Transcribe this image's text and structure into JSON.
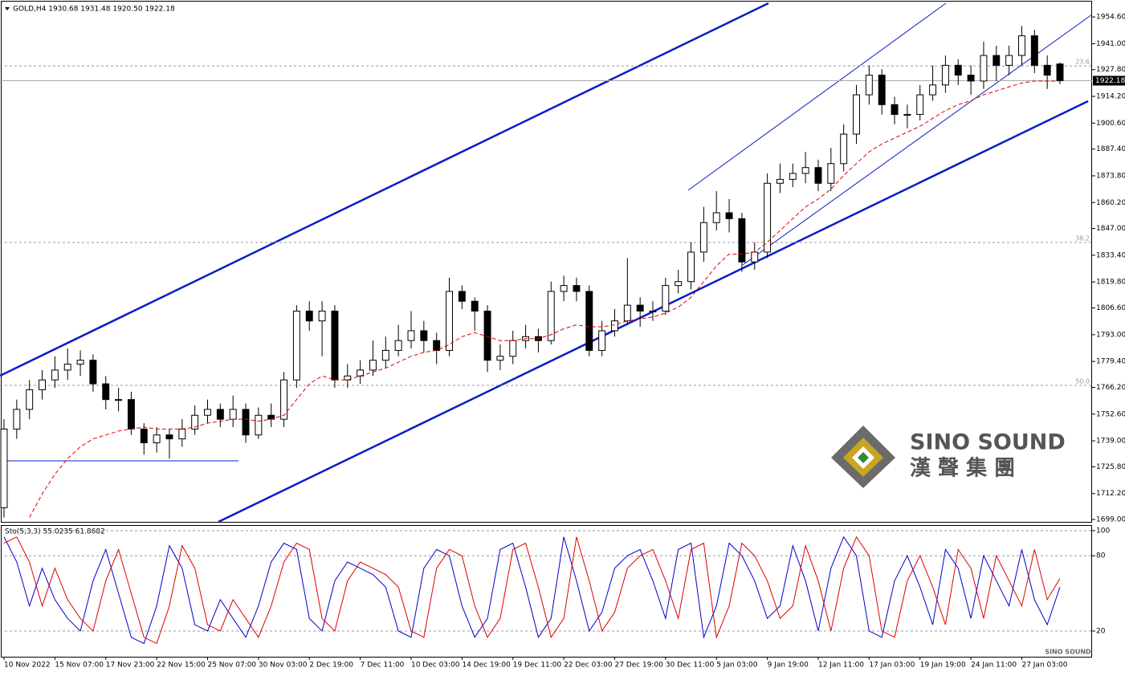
{
  "chart_data": [
    {
      "type": "candlestick",
      "title": "GOLD,H4  1930.68 1931.48 1920.50 1922.18",
      "categories": [
        "10 Nov 2022",
        null,
        null,
        null,
        "15 Nov 07:00",
        null,
        null,
        null,
        "17 Nov 23:00",
        null,
        null,
        null,
        "22 Nov 15:00",
        null,
        null,
        null,
        "25 Nov 07:00",
        null,
        null,
        null,
        "30 Nov 03:00",
        null,
        null,
        null,
        "2 Dec 19:00",
        null,
        null,
        null,
        "7 Dec 11:00",
        null,
        null,
        null,
        "10 Dec 03:00",
        null,
        null,
        null,
        "14 Dec 19:00",
        null,
        null,
        null,
        "19 Dec 11:00",
        null,
        null,
        null,
        "22 Dec 03:00",
        null,
        null,
        null,
        "27 Dec 19:00",
        null,
        null,
        null,
        "30 Dec 11:00",
        null,
        null,
        null,
        "5 Jan 03:00",
        null,
        null,
        null,
        "9 Jan 19:00",
        null,
        null,
        null,
        "12 Jan 11:00",
        null,
        null,
        null,
        "17 Jan 03:00",
        null,
        null,
        null,
        "19 Jan 19:00",
        null,
        null,
        null,
        "24 Jan 11:00",
        null,
        null,
        null,
        "27 Jan 03:00",
        null,
        null,
        null
      ],
      "candles": [
        [
          1705,
          1750,
          1700,
          1745
        ],
        [
          1745,
          1760,
          1740,
          1755
        ],
        [
          1755,
          1770,
          1750,
          1765
        ],
        [
          1765,
          1775,
          1760,
          1770
        ],
        [
          1770,
          1782,
          1766,
          1775
        ],
        [
          1775,
          1786,
          1770,
          1778
        ],
        [
          1778,
          1785,
          1772,
          1780
        ],
        [
          1780,
          1783,
          1764,
          1768
        ],
        [
          1768,
          1772,
          1755,
          1760
        ],
        [
          1760,
          1766,
          1754,
          1760
        ],
        [
          1760,
          1764,
          1742,
          1745
        ],
        [
          1745,
          1748,
          1732,
          1738
        ],
        [
          1738,
          1746,
          1733,
          1742
        ],
        [
          1742,
          1745,
          1730,
          1740
        ],
        [
          1740,
          1750,
          1736,
          1745
        ],
        [
          1745,
          1757,
          1742,
          1752
        ],
        [
          1752,
          1760,
          1748,
          1755
        ],
        [
          1755,
          1758,
          1746,
          1750
        ],
        [
          1750,
          1762,
          1746,
          1755
        ],
        [
          1755,
          1758,
          1738,
          1742
        ],
        [
          1742,
          1756,
          1740,
          1752
        ],
        [
          1752,
          1758,
          1746,
          1750
        ],
        [
          1750,
          1774,
          1746,
          1770
        ],
        [
          1770,
          1808,
          1766,
          1805
        ],
        [
          1805,
          1810,
          1795,
          1800
        ],
        [
          1800,
          1810,
          1782,
          1805
        ],
        [
          1805,
          1808,
          1766,
          1770
        ],
        [
          1770,
          1778,
          1766,
          1772
        ],
        [
          1772,
          1780,
          1768,
          1775
        ],
        [
          1775,
          1790,
          1772,
          1780
        ],
        [
          1780,
          1792,
          1776,
          1785
        ],
        [
          1785,
          1798,
          1782,
          1790
        ],
        [
          1790,
          1805,
          1786,
          1795
        ],
        [
          1795,
          1800,
          1784,
          1790
        ],
        [
          1790,
          1794,
          1778,
          1785
        ],
        [
          1785,
          1822,
          1782,
          1815
        ],
        [
          1815,
          1818,
          1806,
          1810
        ],
        [
          1810,
          1812,
          1795,
          1805
        ],
        [
          1805,
          1808,
          1774,
          1780
        ],
        [
          1780,
          1788,
          1775,
          1782
        ],
        [
          1782,
          1795,
          1778,
          1790
        ],
        [
          1790,
          1798,
          1786,
          1792
        ],
        [
          1792,
          1796,
          1784,
          1790
        ],
        [
          1790,
          1820,
          1788,
          1815
        ],
        [
          1815,
          1823,
          1810,
          1818
        ],
        [
          1818,
          1822,
          1810,
          1815
        ],
        [
          1815,
          1818,
          1782,
          1785
        ],
        [
          1785,
          1800,
          1782,
          1795
        ],
        [
          1795,
          1806,
          1792,
          1800
        ],
        [
          1800,
          1832,
          1798,
          1808
        ],
        [
          1808,
          1812,
          1797,
          1805
        ],
        [
          1805,
          1810,
          1800,
          1805
        ],
        [
          1805,
          1822,
          1803,
          1818
        ],
        [
          1818,
          1826,
          1814,
          1820
        ],
        [
          1820,
          1840,
          1816,
          1835
        ],
        [
          1835,
          1858,
          1830,
          1850
        ],
        [
          1850,
          1866,
          1846,
          1855
        ],
        [
          1855,
          1862,
          1845,
          1852
        ],
        [
          1852,
          1855,
          1825,
          1830
        ],
        [
          1830,
          1840,
          1826,
          1835
        ],
        [
          1835,
          1875,
          1832,
          1870
        ],
        [
          1870,
          1880,
          1865,
          1872
        ],
        [
          1872,
          1880,
          1868,
          1875
        ],
        [
          1875,
          1886,
          1870,
          1878
        ],
        [
          1878,
          1882,
          1866,
          1870
        ],
        [
          1870,
          1888,
          1866,
          1880
        ],
        [
          1880,
          1900,
          1876,
          1895
        ],
        [
          1895,
          1920,
          1890,
          1915
        ],
        [
          1915,
          1930,
          1910,
          1925
        ],
        [
          1925,
          1928,
          1905,
          1910
        ],
        [
          1910,
          1914,
          1900,
          1905
        ],
        [
          1905,
          1910,
          1898,
          1905
        ],
        [
          1905,
          1920,
          1902,
          1915
        ],
        [
          1915,
          1930,
          1912,
          1920
        ],
        [
          1920,
          1935,
          1916,
          1930
        ],
        [
          1930,
          1933,
          1920,
          1925
        ],
        [
          1925,
          1930,
          1915,
          1922
        ],
        [
          1922,
          1942,
          1918,
          1935
        ],
        [
          1935,
          1940,
          1922,
          1930
        ],
        [
          1930,
          1940,
          1925,
          1935
        ],
        [
          1935,
          1950,
          1930,
          1945
        ],
        [
          1945,
          1948,
          1926,
          1930
        ],
        [
          1930,
          1935,
          1918,
          1925
        ],
        [
          1930.68,
          1931.48,
          1920.5,
          1922.18
        ]
      ],
      "ma": [
        null,
        null,
        1700,
        1712,
        1722,
        1730,
        1736,
        1740,
        1742,
        1744,
        1745,
        1746,
        1745,
        1745,
        1745,
        1746,
        1748,
        1749,
        1750,
        1750,
        1749,
        1750,
        1752,
        1760,
        1768,
        1772,
        1770,
        1770,
        1772,
        1774,
        1776,
        1779,
        1782,
        1784,
        1785,
        1788,
        1792,
        1794,
        1792,
        1790,
        1790,
        1791,
        1791,
        1793,
        1796,
        1798,
        1797,
        1797,
        1798,
        1800,
        1801,
        1802,
        1804,
        1807,
        1812,
        1820,
        1828,
        1834,
        1834,
        1835,
        1840,
        1846,
        1852,
        1858,
        1862,
        1867,
        1874,
        1880,
        1886,
        1890,
        1893,
        1896,
        1899,
        1903,
        1907,
        1910,
        1912,
        1915,
        1917,
        1919,
        1921,
        1922,
        1922,
        1922
      ],
      "ma_color": "#e00000",
      "up_color": "#ffffff",
      "down_color": "#000000",
      "wick_color": "#000000",
      "ylim": [
        1697.8,
        1962.4
      ],
      "yticks": [
        {
          "value": 1954.6,
          "label": "1954.60"
        },
        {
          "value": 1941,
          "label": "1941.00"
        },
        {
          "value": 1927.8,
          "label": "1927.80"
        },
        {
          "value": 1914.2,
          "label": "1914.20"
        },
        {
          "value": 1900.6,
          "label": "1900.60"
        },
        {
          "value": 1887.4,
          "label": "1887.40"
        },
        {
          "value": 1873.8,
          "label": "1873.80"
        },
        {
          "value": 1860.2,
          "label": "1860.20"
        },
        {
          "value": 1847,
          "label": "1847.00"
        },
        {
          "value": 1833.4,
          "label": "1833.40"
        },
        {
          "value": 1819.8,
          "label": "1819.80"
        },
        {
          "value": 1806.6,
          "label": "1806.60"
        },
        {
          "value": 1793,
          "label": "1793.00"
        },
        {
          "value": 1779.4,
          "label": "1779.40"
        },
        {
          "value": 1766.2,
          "label": "1766.20"
        },
        {
          "value": 1752.6,
          "label": "1752.60"
        },
        {
          "value": 1739,
          "label": "1739.00"
        },
        {
          "value": 1725.8,
          "label": "1725.80"
        },
        {
          "value": 1712.2,
          "label": "1712.20"
        },
        {
          "value": 1699,
          "label": "1699.00"
        }
      ],
      "fib_levels": [
        {
          "value": 1929.7,
          "label": "23.6"
        },
        {
          "value": 1839.9,
          "label": "38.2"
        },
        {
          "value": 1767.2,
          "label": "50.0"
        }
      ],
      "watermark": "SINO SOUND",
      "watermark_sub": "漢 聲 集 團"
    },
    {
      "type": "line",
      "title": "Sto(5,3,3) 55.0235 61.8682",
      "series": [
        {
          "color": "#0000cc",
          "values": [
            95,
            75,
            40,
            70,
            45,
            30,
            20,
            60,
            85,
            50,
            15,
            10,
            40,
            88,
            70,
            25,
            20,
            45,
            30,
            15,
            40,
            75,
            90,
            85,
            30,
            20,
            60,
            75,
            70,
            65,
            55,
            20,
            15,
            70,
            85,
            80,
            40,
            15,
            30,
            85,
            90,
            55,
            15,
            30,
            95,
            60,
            20,
            35,
            70,
            80,
            85,
            60,
            30,
            85,
            90,
            15,
            40,
            90,
            80,
            60,
            30,
            40,
            88,
            60,
            20,
            70,
            95,
            80,
            20,
            15,
            60,
            80,
            55,
            25,
            85,
            70,
            30,
            80,
            60,
            40,
            85,
            45,
            25,
            55.0235
          ]
        },
        {
          "color": "#dd0000",
          "values": [
            90,
            95,
            75,
            40,
            70,
            45,
            30,
            20,
            60,
            85,
            50,
            15,
            10,
            40,
            88,
            70,
            25,
            20,
            45,
            30,
            15,
            40,
            75,
            90,
            85,
            30,
            20,
            60,
            75,
            70,
            65,
            55,
            20,
            15,
            70,
            85,
            80,
            40,
            15,
            30,
            85,
            90,
            55,
            15,
            30,
            95,
            60,
            20,
            35,
            70,
            80,
            85,
            60,
            30,
            85,
            90,
            15,
            40,
            90,
            80,
            60,
            30,
            40,
            88,
            60,
            20,
            70,
            95,
            80,
            20,
            15,
            60,
            80,
            55,
            25,
            85,
            70,
            30,
            80,
            60,
            40,
            85,
            45,
            61.8682
          ]
        }
      ],
      "ylim": [
        -0.5,
        103.8
      ],
      "yticks": [
        100,
        80,
        20
      ]
    }
  ]
}
